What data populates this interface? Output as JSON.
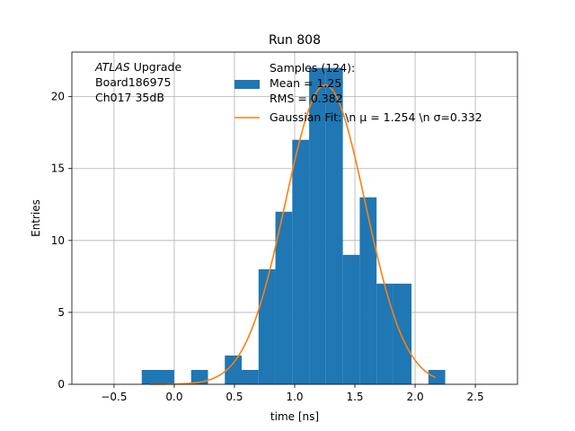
{
  "chart_data": {
    "type": "bar",
    "title": "Run 808",
    "xlabel": "time [ns]",
    "ylabel": "Entries",
    "xlim": [
      -0.85,
      2.85
    ],
    "ylim": [
      0,
      23.1
    ],
    "grid": true,
    "xticks": [
      -0.5,
      0.0,
      0.5,
      1.0,
      1.5,
      2.0,
      2.5
    ],
    "xtick_labels": [
      "−0.5",
      "0.0",
      "0.5",
      "1.0",
      "1.5",
      "2.0",
      "2.5"
    ],
    "yticks": [
      0,
      5,
      10,
      15,
      20
    ],
    "ytick_labels": [
      "0",
      "5",
      "10",
      "15",
      "20"
    ],
    "annotation": {
      "lines": [
        {
          "italic": "ATLAS",
          "text": " Upgrade"
        },
        {
          "italic": "",
          "text": " Board186975"
        },
        {
          "italic": "",
          "text": " Ch017 35dB"
        }
      ]
    },
    "legend": {
      "placement": "top-right",
      "entries": [
        {
          "lines": [
            "Samples (124):",
            " Mean = 1.25",
            " RMS = 0.382"
          ],
          "color": "#1f77b4",
          "kind": "patch"
        },
        {
          "lines": [
            "Gaussian Fit: \\n μ = 1.254 \\n σ=0.332"
          ],
          "color": "#ff7f0e",
          "kind": "line"
        }
      ]
    },
    "histogram": {
      "name": "Samples (124):",
      "color": "#1f77b4",
      "bins": [
        {
          "x0": -0.27,
          "x1": -0.13,
          "count": 1
        },
        {
          "x0": -0.13,
          "x1": 0.0,
          "count": 1
        },
        {
          "x0": 0.14,
          "x1": 0.28,
          "count": 1
        },
        {
          "x0": 0.42,
          "x1": 0.56,
          "count": 2
        },
        {
          "x0": 0.56,
          "x1": 0.7,
          "count": 1
        },
        {
          "x0": 0.7,
          "x1": 0.84,
          "count": 8
        },
        {
          "x0": 0.84,
          "x1": 0.98,
          "count": 12
        },
        {
          "x0": 0.98,
          "x1": 1.12,
          "count": 17
        },
        {
          "x0": 1.12,
          "x1": 1.26,
          "count": 22
        },
        {
          "x0": 1.26,
          "x1": 1.4,
          "count": 22
        },
        {
          "x0": 1.4,
          "x1": 1.54,
          "count": 9
        },
        {
          "x0": 1.54,
          "x1": 1.68,
          "count": 13
        },
        {
          "x0": 1.68,
          "x1": 1.82,
          "count": 7
        },
        {
          "x0": 1.82,
          "x1": 1.97,
          "count": 7
        },
        {
          "x0": 2.11,
          "x1": 2.25,
          "count": 1
        }
      ]
    },
    "fit": {
      "name": "Gaussian Fit",
      "color": "#ff7f0e",
      "mu": 1.254,
      "sigma": 0.332,
      "amplitude": 20.8,
      "x_range": [
        -0.2,
        2.17
      ]
    }
  }
}
